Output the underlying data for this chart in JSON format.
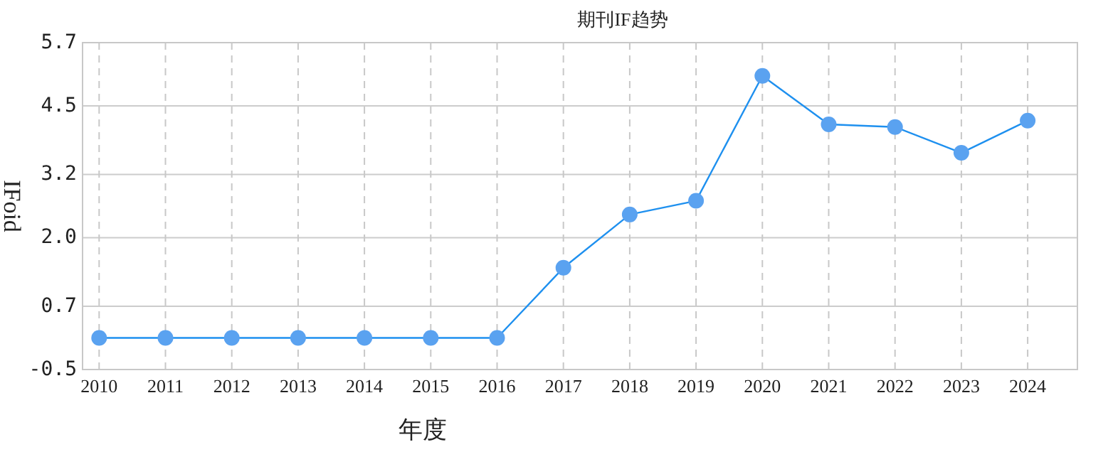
{
  "chart_data": {
    "type": "line",
    "title": "期刊IF趋势",
    "xlabel": "年度",
    "ylabel": "IFoid",
    "categories": [
      "2010",
      "2011",
      "2012",
      "2013",
      "2014",
      "2015",
      "2016",
      "2017",
      "2018",
      "2019",
      "2020",
      "2021",
      "2022",
      "2023",
      "2024"
    ],
    "series": [
      {
        "color": "#5aa2f0",
        "values": [
          0.1,
          0.1,
          0.1,
          0.1,
          0.1,
          0.1,
          0.1,
          1.43,
          2.44,
          2.7,
          5.07,
          4.15,
          4.1,
          3.61,
          4.22
        ]
      }
    ],
    "ylim": [
      -0.5,
      5.7
    ],
    "yticks": [
      -0.5,
      0.7,
      {
        "value": 2,
        "label": "2.0"
      },
      3.2,
      4.5,
      5.7
    ],
    "grid": true,
    "marker": "circle",
    "line_style": "solid"
  }
}
